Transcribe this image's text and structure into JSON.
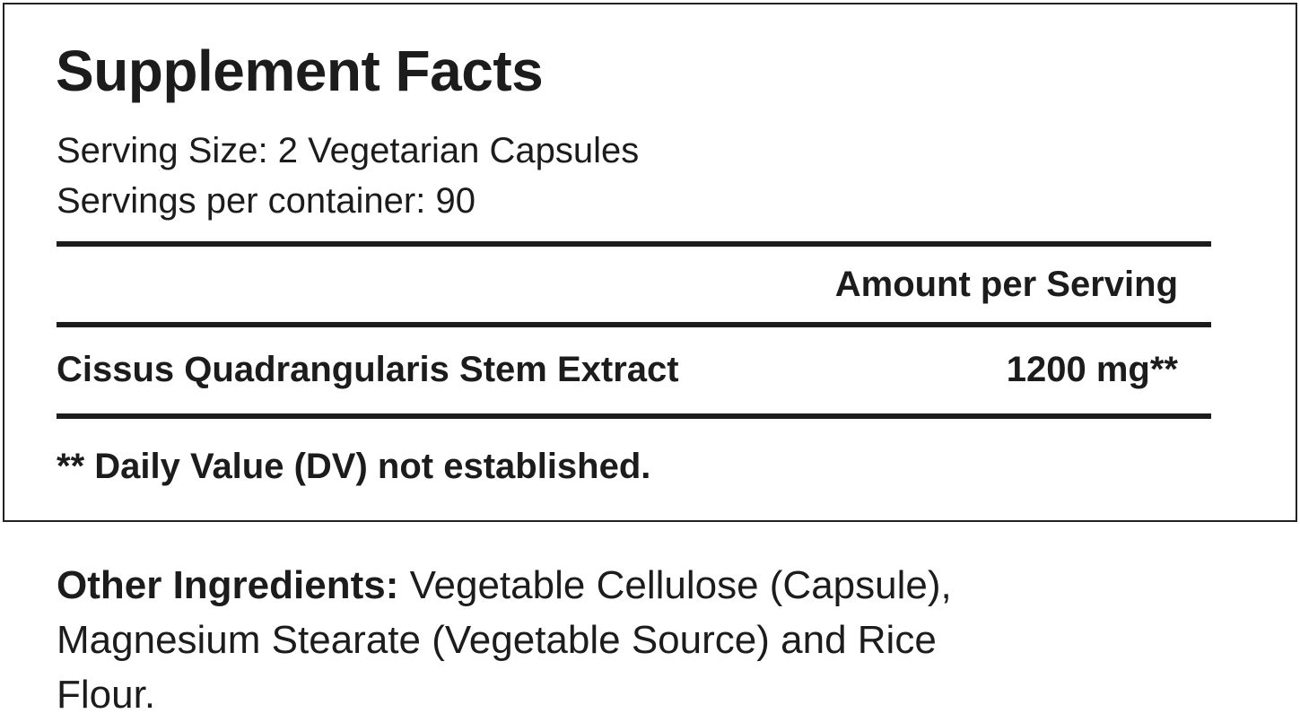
{
  "label": {
    "title": "Supplement Facts",
    "serving_size": "Serving Size: 2 Vegetarian Capsules",
    "servings_per_container": "Servings per container: 90",
    "amount_header": "Amount per Serving",
    "ingredients": [
      {
        "name": "Cissus Quadrangularis Stem Extract",
        "amount": "1200 mg**"
      }
    ],
    "footnote": "** Daily Value (DV) not established."
  },
  "other_ingredients": {
    "label": "Other Ingredients:",
    "text": " Vegetable Cellulose (Capsule), Magnesium Stearate (Vegetable Source) and Rice Flour."
  }
}
